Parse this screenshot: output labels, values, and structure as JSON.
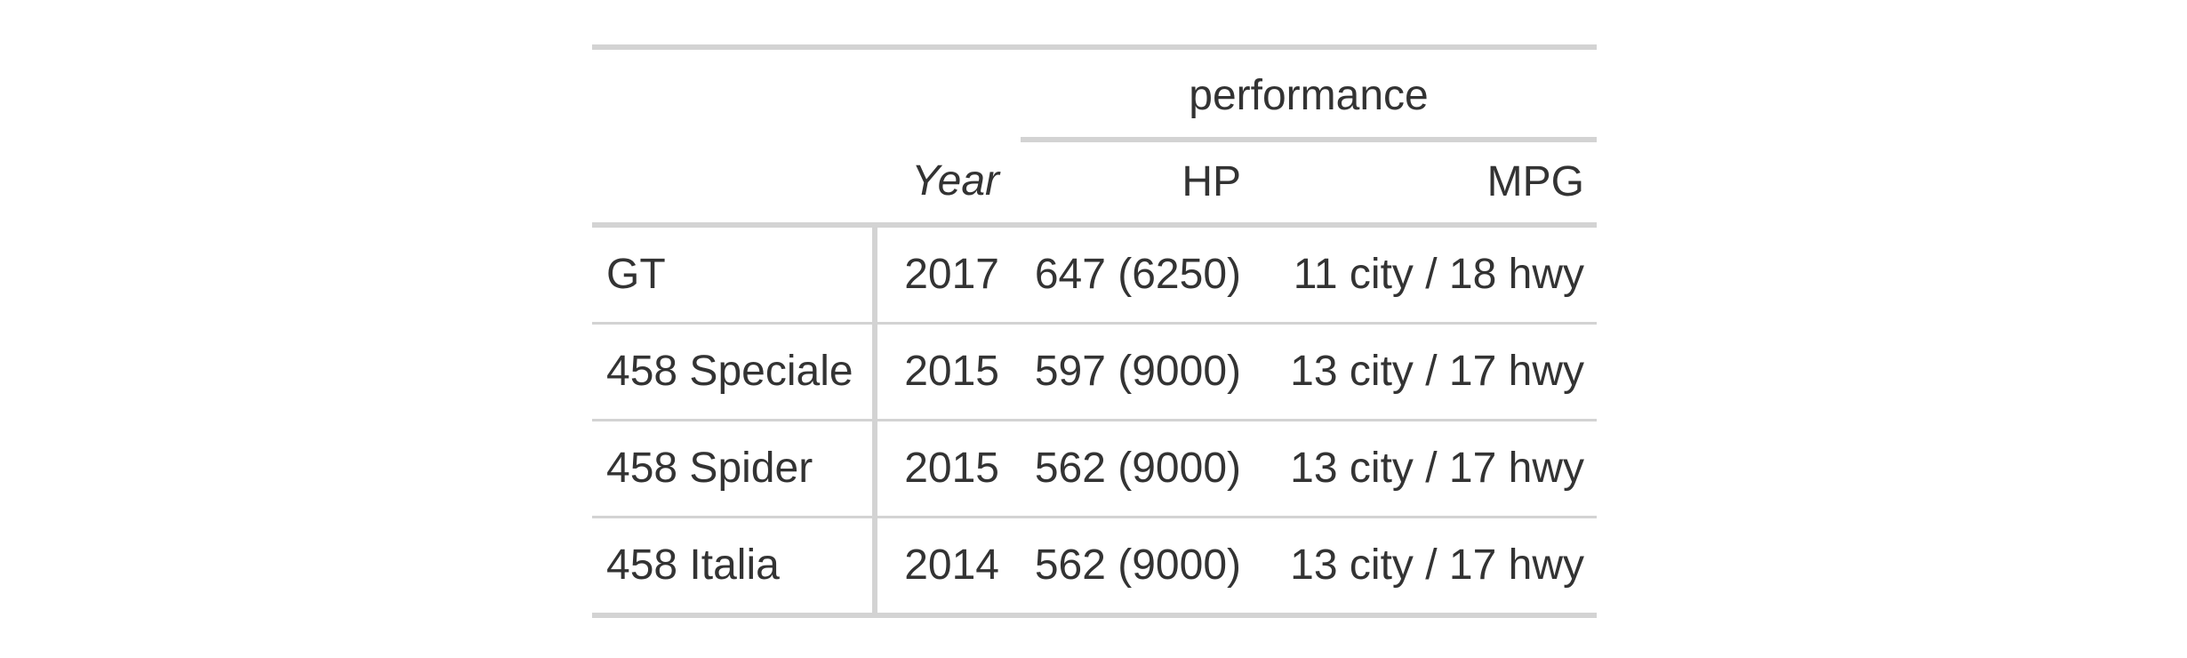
{
  "table": {
    "spanner_label": "performance",
    "columns": {
      "stub": "",
      "year": "Year",
      "hp": "HP",
      "mpg": "MPG"
    },
    "rows": [
      {
        "model": "GT",
        "year": "2017",
        "hp": "647 (6250)",
        "mpg": "11 city / 18 hwy"
      },
      {
        "model": "458 Speciale",
        "year": "2015",
        "hp": "597 (9000)",
        "mpg": "13 city / 17 hwy"
      },
      {
        "model": "458 Spider",
        "year": "2015",
        "hp": "562 (9000)",
        "mpg": "13 city / 17 hwy"
      },
      {
        "model": "458 Italia",
        "year": "2014",
        "hp": "562 (9000)",
        "mpg": "13 city / 17 hwy"
      }
    ]
  }
}
